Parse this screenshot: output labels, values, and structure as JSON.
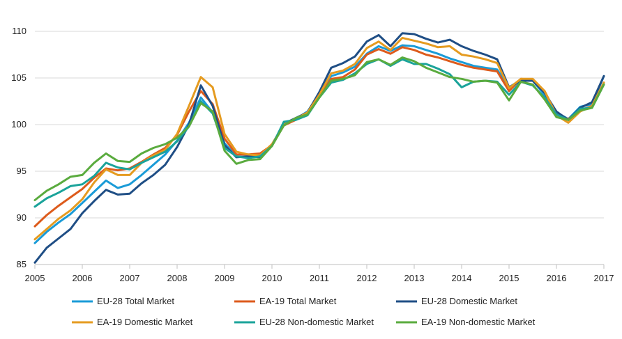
{
  "chart_data": {
    "type": "line",
    "title": "",
    "xlabel": "",
    "ylabel": "",
    "xlim": [
      2005,
      2017
    ],
    "ylim": [
      85,
      110
    ],
    "x_ticks": [
      "2005",
      "2006",
      "2007",
      "2008",
      "2009",
      "2010",
      "2011",
      "2012",
      "2013",
      "2014",
      "2015",
      "2016",
      "2017"
    ],
    "y_ticks": [
      "85",
      "90",
      "95",
      "100",
      "105",
      "110"
    ],
    "grid": "horizontal",
    "legend_position": "bottom",
    "x": [
      2005,
      2005.25,
      2005.5,
      2005.75,
      2006,
      2006.25,
      2006.5,
      2006.75,
      2007,
      2007.25,
      2007.5,
      2007.75,
      2008,
      2008.25,
      2008.5,
      2008.75,
      2009,
      2009.25,
      2009.5,
      2009.75,
      2010,
      2010.25,
      2010.5,
      2010.75,
      2011,
      2011.25,
      2011.5,
      2011.75,
      2012,
      2012.25,
      2012.5,
      2012.75,
      2013,
      2013.25,
      2013.5,
      2013.75,
      2014,
      2014.25,
      2014.5,
      2014.75,
      2015,
      2015.25,
      2015.5,
      2015.75,
      2016,
      2016.25,
      2016.5,
      2016.75,
      2017
    ],
    "series": [
      {
        "name": "EU-28 Total Market",
        "color": "#1a9bd7",
        "values": [
          87.3,
          88.5,
          89.5,
          90.4,
          91.6,
          92.8,
          94.0,
          93.2,
          93.6,
          94.6,
          95.7,
          96.8,
          98.3,
          100.2,
          102.9,
          101.3,
          98.0,
          96.6,
          96.5,
          96.8,
          97.8,
          100.0,
          100.6,
          101.4,
          103.3,
          105.2,
          105.6,
          106.2,
          107.6,
          108.4,
          107.9,
          108.5,
          108.4,
          108.0,
          107.6,
          107.1,
          106.7,
          106.3,
          106.1,
          105.9,
          104.0,
          104.8,
          104.7,
          103.2,
          101.3,
          100.6,
          101.9,
          102.2,
          105.2
        ]
      },
      {
        "name": "EA-19 Total Market",
        "color": "#dd5b1c",
        "values": [
          89.1,
          90.3,
          91.3,
          92.2,
          93.1,
          94.3,
          95.3,
          95.1,
          95.3,
          96.0,
          96.8,
          97.5,
          98.9,
          101.4,
          103.6,
          102.2,
          98.5,
          96.8,
          96.8,
          96.9,
          97.8,
          99.9,
          100.5,
          101.2,
          103.0,
          104.9,
          105.1,
          105.9,
          107.5,
          108.1,
          107.6,
          108.3,
          108.0,
          107.5,
          107.2,
          106.8,
          106.4,
          106.1,
          105.9,
          105.7,
          103.6,
          104.9,
          104.8,
          103.6,
          101.1,
          100.6,
          101.5,
          102.0,
          104.5
        ]
      },
      {
        "name": "EU-28 Domestic Market",
        "color": "#1f4e85",
        "values": [
          85.2,
          86.8,
          87.8,
          88.8,
          90.5,
          91.8,
          93.0,
          92.5,
          92.6,
          93.7,
          94.6,
          95.7,
          97.6,
          100.0,
          104.2,
          102.0,
          97.8,
          96.5,
          96.6,
          96.5,
          97.8,
          100.1,
          100.7,
          101.3,
          103.5,
          106.1,
          106.6,
          107.3,
          108.9,
          109.6,
          108.4,
          109.8,
          109.7,
          109.2,
          108.8,
          109.1,
          108.4,
          107.9,
          107.5,
          107.0,
          104.0,
          104.7,
          104.7,
          103.4,
          101.4,
          100.5,
          101.8,
          102.4,
          105.2
        ]
      },
      {
        "name": "EA-19 Domestic Market",
        "color": "#e59b20",
        "values": [
          87.7,
          88.8,
          89.9,
          90.8,
          92.0,
          93.8,
          95.2,
          94.6,
          94.6,
          95.9,
          96.7,
          97.3,
          99.0,
          102.0,
          105.1,
          104.0,
          99.0,
          97.1,
          96.8,
          96.7,
          97.9,
          100.0,
          100.6,
          101.3,
          103.2,
          105.5,
          105.8,
          106.5,
          108.2,
          108.9,
          108.0,
          109.3,
          109.0,
          108.7,
          108.3,
          108.4,
          107.5,
          107.3,
          107.0,
          106.6,
          103.9,
          104.9,
          104.9,
          103.6,
          101.0,
          100.2,
          101.4,
          102.0,
          104.5
        ]
      },
      {
        "name": "EU-28 Non-domestic Market",
        "color": "#1aa39a",
        "values": [
          91.2,
          92.1,
          92.7,
          93.4,
          93.6,
          94.5,
          95.9,
          95.4,
          95.2,
          95.9,
          96.5,
          97.1,
          98.2,
          99.8,
          102.5,
          101.2,
          97.5,
          96.6,
          96.4,
          96.6,
          97.7,
          100.3,
          100.5,
          101.0,
          102.9,
          104.5,
          104.8,
          105.5,
          106.5,
          107.0,
          106.3,
          107.0,
          106.5,
          106.5,
          106.0,
          105.4,
          104.0,
          104.6,
          104.7,
          104.6,
          103.2,
          104.6,
          104.2,
          102.9,
          101.1,
          100.5,
          101.7,
          101.8,
          104.3
        ]
      },
      {
        "name": "EA-19 Non-domestic Market",
        "color": "#5aab3e",
        "values": [
          91.9,
          92.9,
          93.6,
          94.4,
          94.6,
          95.9,
          96.9,
          96.1,
          96.0,
          96.9,
          97.5,
          97.9,
          98.6,
          99.8,
          102.3,
          101.4,
          97.2,
          95.8,
          96.2,
          96.3,
          97.7,
          99.9,
          100.7,
          101.1,
          102.9,
          104.7,
          104.9,
          105.3,
          106.7,
          107.0,
          106.4,
          107.2,
          106.8,
          106.1,
          105.6,
          105.1,
          104.9,
          104.6,
          104.7,
          104.5,
          102.6,
          104.6,
          104.3,
          102.7,
          100.8,
          100.5,
          101.5,
          101.8,
          104.3
        ]
      }
    ]
  }
}
